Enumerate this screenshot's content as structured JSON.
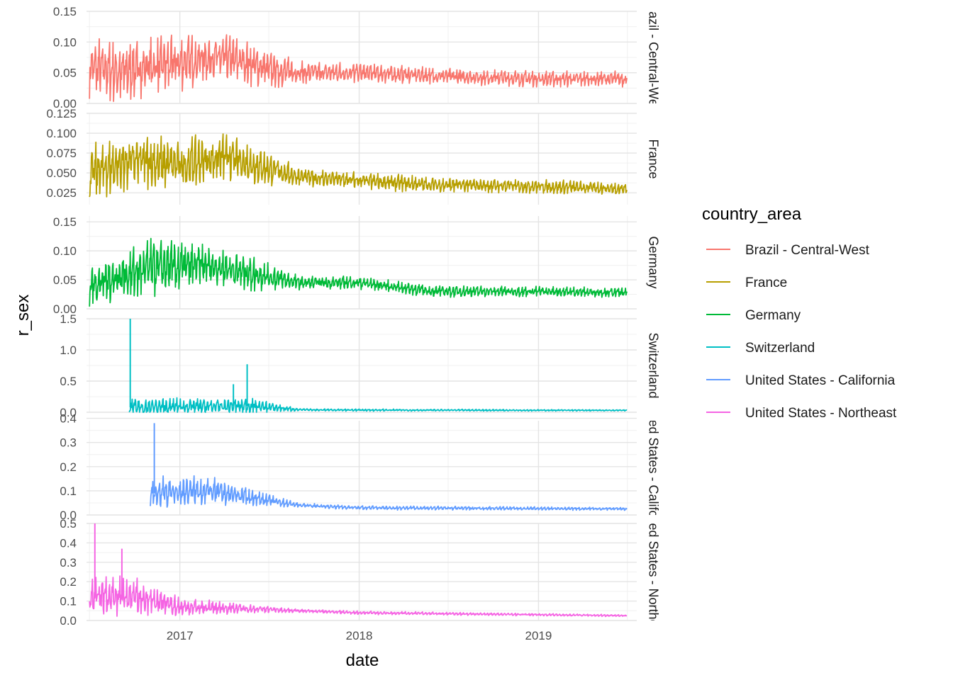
{
  "chart_data": {
    "type": "line",
    "xlabel": "date",
    "ylabel": "r_sex",
    "x_ticks": [
      "2017",
      "2018",
      "2019"
    ],
    "xlim": [
      "2016-06-25",
      "2019-07-20"
    ],
    "grid": true,
    "legend": {
      "title": "country_area",
      "position": "right",
      "entries": [
        "Brazil - Central-West",
        "France",
        "Germany",
        "Switzerland",
        "United States - California",
        "United States - Northeast"
      ]
    },
    "panels": [
      {
        "strip_label": "Brazil - Central-West",
        "color": "#F8766D",
        "ylim": [
          0,
          0.15
        ],
        "y_ticks": [
          "0.00",
          "0.05",
          "0.10",
          "0.15"
        ],
        "keypoints": [
          [
            "2016-07-01",
            0.06
          ],
          [
            "2016-09-01",
            0.05
          ],
          [
            "2016-11-01",
            0.06
          ],
          [
            "2017-01-01",
            0.065
          ],
          [
            "2017-03-01",
            0.075
          ],
          [
            "2017-05-01",
            0.07
          ],
          [
            "2017-07-01",
            0.055
          ],
          [
            "2017-09-01",
            0.05
          ],
          [
            "2018-01-01",
            0.05
          ],
          [
            "2018-06-01",
            0.045
          ],
          [
            "2018-12-31",
            0.04
          ],
          [
            "2019-06-30",
            0.04
          ]
        ],
        "amplitude": [
          [
            "2016-07-01",
            0.05
          ],
          [
            "2017-01-01",
            0.045
          ],
          [
            "2017-06-01",
            0.035
          ],
          [
            "2017-09-01",
            0.02
          ],
          [
            "2018-06-01",
            0.013
          ],
          [
            "2019-06-30",
            0.013
          ]
        ]
      },
      {
        "strip_label": "France",
        "color": "#B79F00",
        "ylim": [
          0.01,
          0.125
        ],
        "y_ticks": [
          "0.025",
          "0.050",
          "0.075",
          "0.100",
          "0.125"
        ],
        "keypoints": [
          [
            "2016-07-01",
            0.05
          ],
          [
            "2016-10-01",
            0.065
          ],
          [
            "2017-01-01",
            0.06
          ],
          [
            "2017-04-01",
            0.07
          ],
          [
            "2017-07-01",
            0.055
          ],
          [
            "2017-09-01",
            0.045
          ],
          [
            "2018-01-01",
            0.04
          ],
          [
            "2018-06-01",
            0.035
          ],
          [
            "2018-12-31",
            0.033
          ],
          [
            "2019-06-30",
            0.03
          ]
        ],
        "amplitude": [
          [
            "2016-07-01",
            0.035
          ],
          [
            "2017-01-01",
            0.035
          ],
          [
            "2017-06-01",
            0.025
          ],
          [
            "2017-09-01",
            0.012
          ],
          [
            "2018-06-01",
            0.01
          ],
          [
            "2019-06-30",
            0.008
          ]
        ]
      },
      {
        "strip_label": "Germany",
        "color": "#00BA38",
        "ylim": [
          0,
          0.16
        ],
        "y_ticks": [
          "0.00",
          "0.05",
          "0.10",
          "0.15"
        ],
        "keypoints": [
          [
            "2016-07-01",
            0.04
          ],
          [
            "2016-11-01",
            0.07
          ],
          [
            "2017-03-01",
            0.075
          ],
          [
            "2017-06-01",
            0.06
          ],
          [
            "2017-09-01",
            0.045
          ],
          [
            "2018-01-01",
            0.045
          ],
          [
            "2018-06-01",
            0.03
          ],
          [
            "2018-12-31",
            0.03
          ],
          [
            "2019-06-30",
            0.028
          ]
        ],
        "amplitude": [
          [
            "2016-07-01",
            0.035
          ],
          [
            "2016-11-01",
            0.05
          ],
          [
            "2017-06-01",
            0.03
          ],
          [
            "2017-09-01",
            0.012
          ],
          [
            "2018-06-01",
            0.01
          ],
          [
            "2019-06-30",
            0.008
          ]
        ]
      },
      {
        "strip_label": "Switzerland",
        "color": "#00BFC4",
        "ylim": [
          0,
          1.5
        ],
        "y_ticks": [
          "0.0",
          "0.5",
          "1.0",
          "1.5"
        ],
        "start": "2016-09-20",
        "keypoints": [
          [
            "2016-09-20",
            0.08
          ],
          [
            "2017-06-01",
            0.1
          ],
          [
            "2017-09-01",
            0.04
          ],
          [
            "2018-01-01",
            0.035
          ],
          [
            "2019-06-30",
            0.03
          ]
        ],
        "amplitude": [
          [
            "2016-09-20",
            0.15
          ],
          [
            "2017-06-01",
            0.12
          ],
          [
            "2017-09-01",
            0.02
          ],
          [
            "2019-06-30",
            0.01
          ]
        ],
        "spikes": [
          [
            "2016-09-22",
            1.5
          ],
          [
            "2017-05-18",
            0.77
          ],
          [
            "2017-04-20",
            0.45
          ]
        ]
      },
      {
        "strip_label": "United States - California",
        "color": "#619CFF",
        "ylim": [
          0,
          0.39
        ],
        "y_ticks": [
          "0.0",
          "0.1",
          "0.2",
          "0.3",
          "0.4"
        ],
        "start": "2016-11-01",
        "keypoints": [
          [
            "2016-11-01",
            0.09
          ],
          [
            "2017-03-01",
            0.1
          ],
          [
            "2017-06-01",
            0.07
          ],
          [
            "2017-09-01",
            0.04
          ],
          [
            "2018-01-01",
            0.03
          ],
          [
            "2019-06-30",
            0.025
          ]
        ],
        "amplitude": [
          [
            "2016-11-01",
            0.07
          ],
          [
            "2017-03-01",
            0.06
          ],
          [
            "2017-06-01",
            0.03
          ],
          [
            "2017-09-01",
            0.01
          ],
          [
            "2019-06-30",
            0.006
          ]
        ],
        "spikes": [
          [
            "2016-11-10",
            0.38
          ]
        ]
      },
      {
        "strip_label": "United States - Northeast",
        "color": "#F564E3",
        "ylim": [
          0,
          0.5
        ],
        "y_ticks": [
          "0.0",
          "0.1",
          "0.2",
          "0.3",
          "0.4",
          "0.5"
        ],
        "keypoints": [
          [
            "2016-07-01",
            0.12
          ],
          [
            "2016-10-01",
            0.12
          ],
          [
            "2017-01-01",
            0.07
          ],
          [
            "2017-06-01",
            0.06
          ],
          [
            "2017-09-01",
            0.05
          ],
          [
            "2018-01-01",
            0.04
          ],
          [
            "2019-06-30",
            0.025
          ]
        ],
        "amplitude": [
          [
            "2016-07-01",
            0.12
          ],
          [
            "2016-10-01",
            0.1
          ],
          [
            "2017-01-01",
            0.05
          ],
          [
            "2017-06-01",
            0.02
          ],
          [
            "2017-09-01",
            0.01
          ],
          [
            "2019-06-30",
            0.005
          ]
        ],
        "spikes": [
          [
            "2016-07-12",
            0.5
          ],
          [
            "2016-09-05",
            0.37
          ]
        ]
      }
    ]
  }
}
